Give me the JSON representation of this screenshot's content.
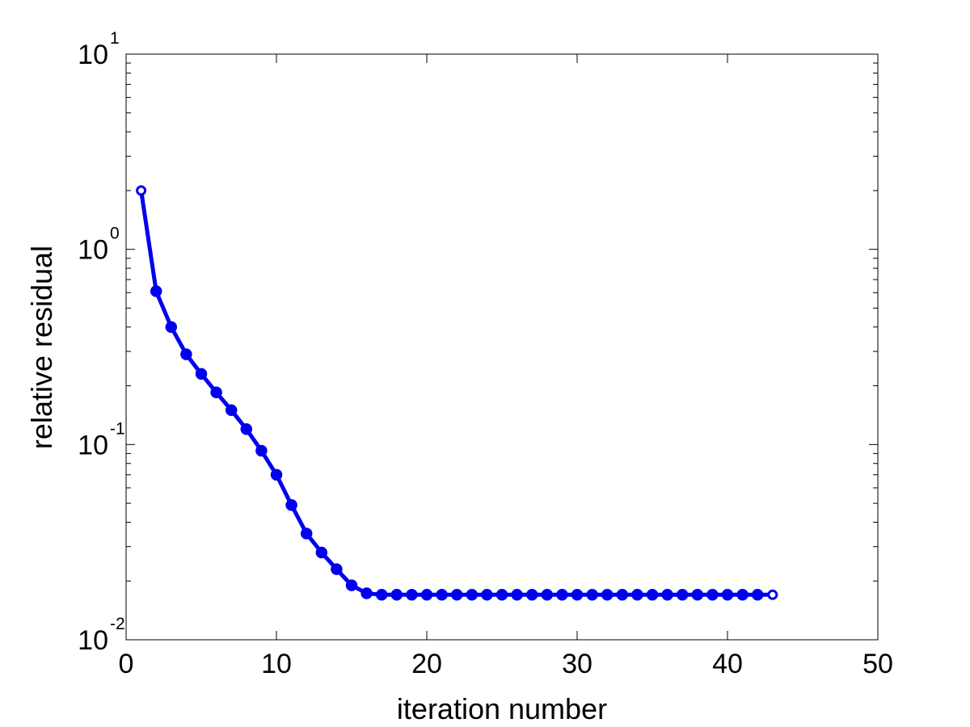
{
  "chart_data": {
    "type": "line",
    "title": "",
    "xlabel": "iteration number",
    "ylabel": "relative residual",
    "xlim": [
      0,
      50
    ],
    "ylim": [
      0.01,
      10
    ],
    "yscale": "log",
    "grid": false,
    "legend": "none",
    "x_ticks": [
      "0",
      "10",
      "20",
      "30",
      "40",
      "50"
    ],
    "y_ticks": [
      {
        "base": "10",
        "exp": "-2"
      },
      {
        "base": "10",
        "exp": "-1"
      },
      {
        "base": "10",
        "exp": "0"
      },
      {
        "base": "10",
        "exp": "1"
      }
    ],
    "series": [
      {
        "color": "#0000ee",
        "marker": "circle",
        "x": [
          1,
          2,
          3,
          4,
          5,
          6,
          7,
          8,
          9,
          10,
          11,
          12,
          13,
          14,
          15,
          16,
          17,
          18,
          19,
          20,
          21,
          22,
          23,
          24,
          25,
          26,
          27,
          28,
          29,
          30,
          31,
          32,
          33,
          34,
          35,
          36,
          37,
          38,
          39,
          40,
          41,
          42,
          43
        ],
        "y": [
          2.0,
          0.61,
          0.4,
          0.29,
          0.23,
          0.185,
          0.15,
          0.12,
          0.093,
          0.07,
          0.049,
          0.035,
          0.028,
          0.023,
          0.019,
          0.0173,
          0.017,
          0.017,
          0.017,
          0.017,
          0.017,
          0.017,
          0.017,
          0.017,
          0.017,
          0.017,
          0.017,
          0.017,
          0.017,
          0.017,
          0.017,
          0.017,
          0.017,
          0.017,
          0.017,
          0.017,
          0.017,
          0.017,
          0.017,
          0.017,
          0.017,
          0.017,
          0.017
        ]
      }
    ]
  }
}
